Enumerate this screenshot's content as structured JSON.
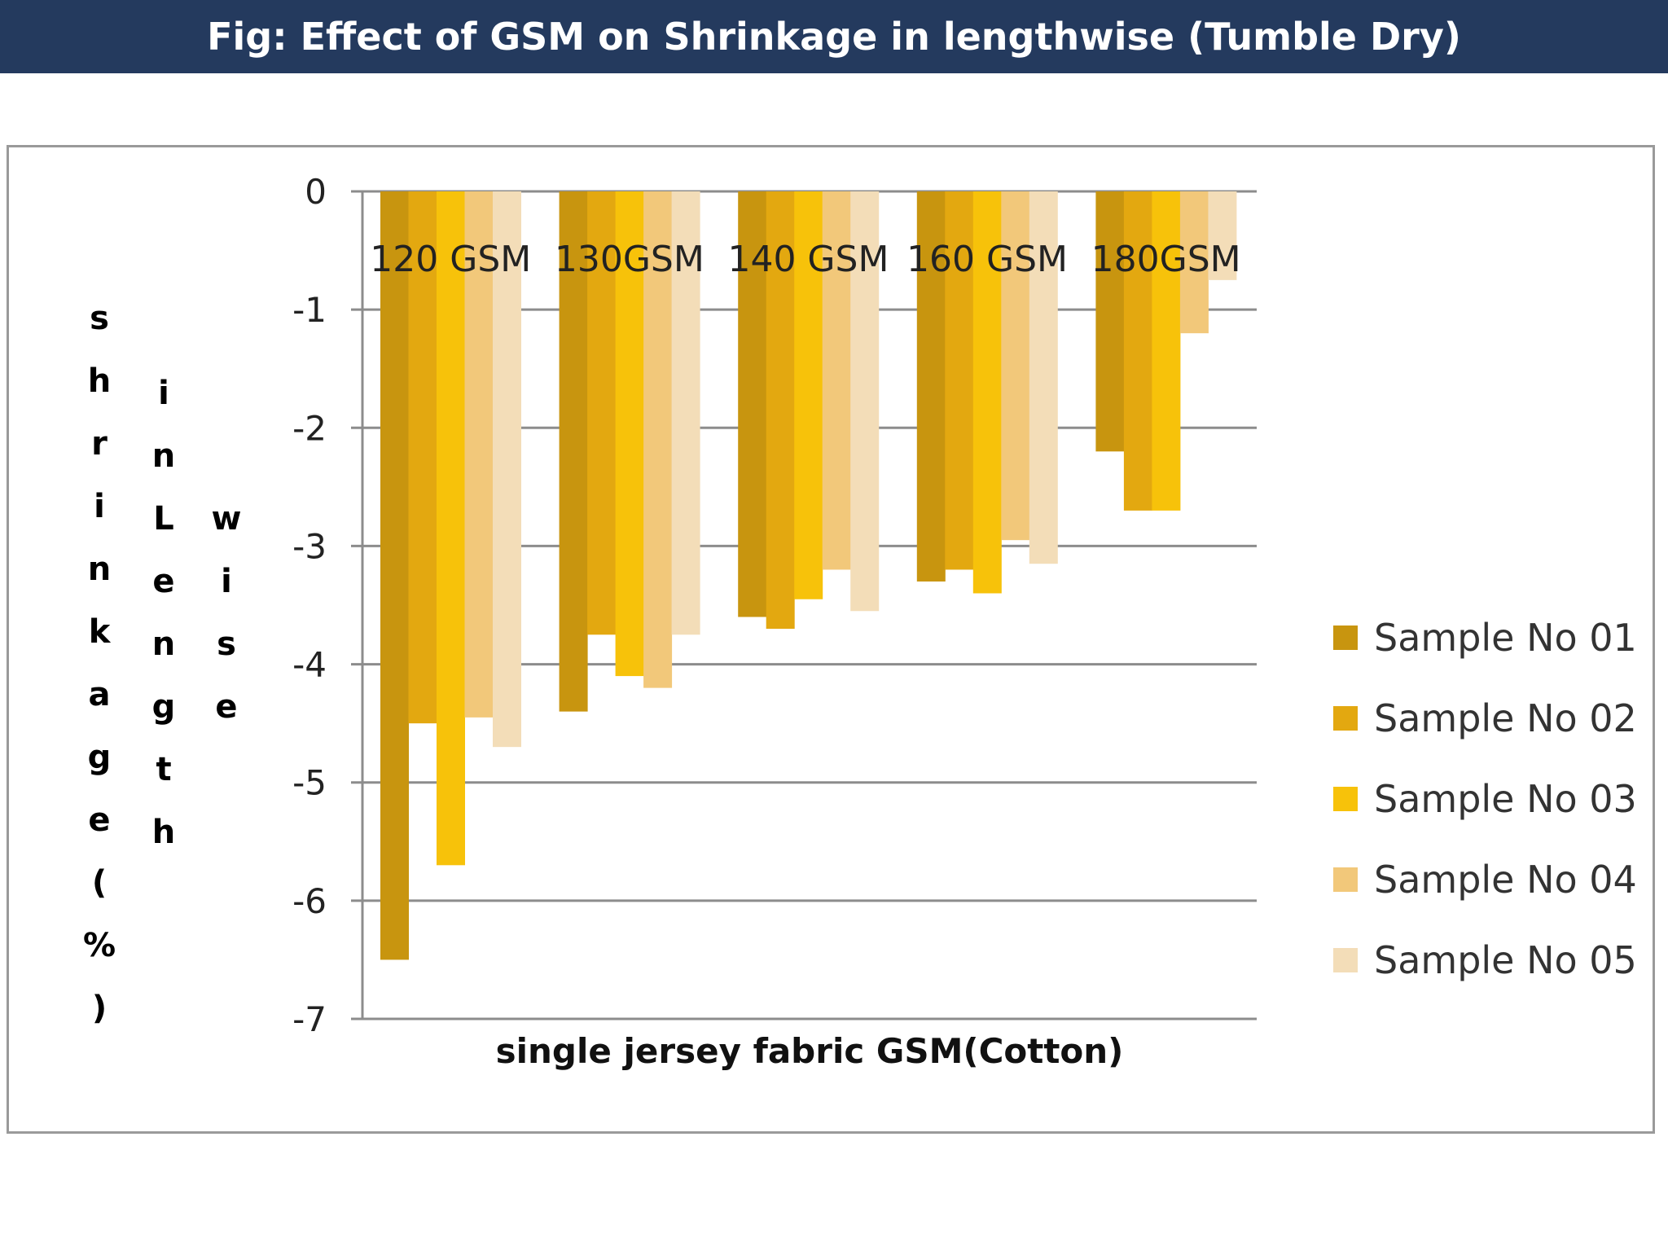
{
  "header": {
    "title": "Fig: Effect of GSM on Shrinkage in lengthwise (Tumble Dry)"
  },
  "chart_data": {
    "type": "bar",
    "title": "",
    "xlabel": "single jersey fabric  GSM(Cotton)",
    "ylabel": "shrinkage(%) in Length wise",
    "ylabel_lines": [
      "shrinkage(%)",
      "inLength",
      "wise"
    ],
    "categories": [
      "120 GSM",
      "130GSM",
      "140 GSM",
      "160 GSM",
      "180GSM"
    ],
    "series": [
      {
        "name": "Sample No 01",
        "color": "#c8950f",
        "values": [
          -6.5,
          -4.4,
          -3.6,
          -3.3,
          -2.2
        ]
      },
      {
        "name": "Sample No 02",
        "color": "#e3a810",
        "values": [
          -4.5,
          -3.75,
          -3.7,
          -3.2,
          -2.7
        ]
      },
      {
        "name": "Sample No 03",
        "color": "#f7c20a",
        "values": [
          -5.7,
          -4.1,
          -3.45,
          -3.4,
          -2.7
        ]
      },
      {
        "name": "Sample No 04",
        "color": "#f2c87a",
        "values": [
          -4.45,
          -4.2,
          -3.2,
          -2.95,
          -1.2
        ]
      },
      {
        "name": "Sample No 05",
        "color": "#f3ddb8",
        "values": [
          -4.7,
          -3.75,
          -3.55,
          -3.15,
          -0.75
        ]
      }
    ],
    "ylim": [
      -7,
      0
    ],
    "yticks": [
      "0",
      "-1",
      "-2",
      "-3",
      "-4",
      "-5",
      "-6",
      "-7"
    ],
    "grid": true,
    "legend_position": "right"
  }
}
